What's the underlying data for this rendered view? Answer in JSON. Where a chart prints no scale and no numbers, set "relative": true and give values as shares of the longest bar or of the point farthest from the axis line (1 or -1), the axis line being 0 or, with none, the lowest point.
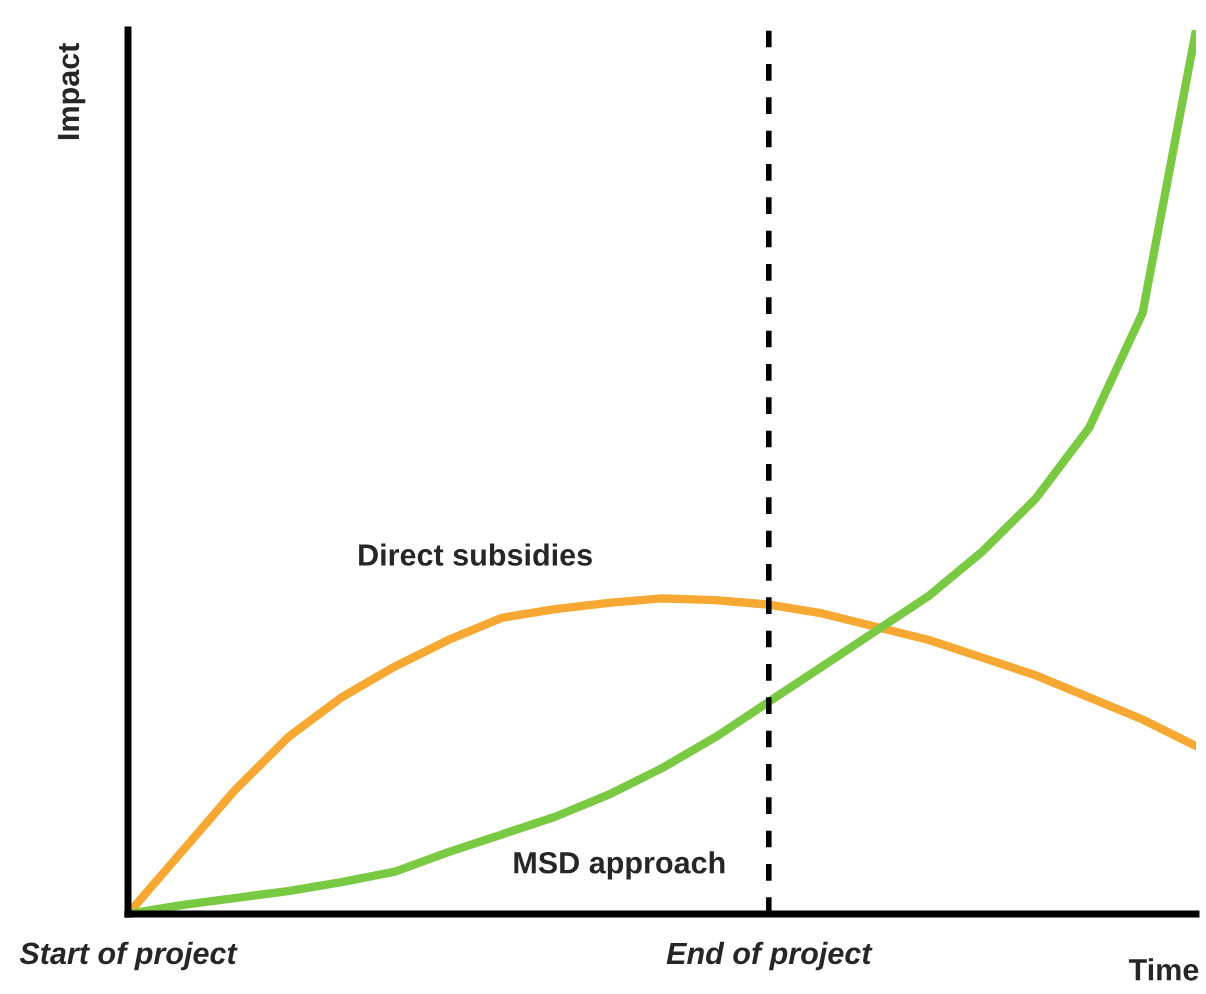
{
  "chart_data": {
    "type": "line",
    "relative": true,
    "xlabel": "Time",
    "ylabel": "Impact",
    "categories": [
      "Start of project",
      null,
      null,
      null,
      null,
      null,
      null,
      null,
      null,
      null,
      null,
      null,
      "End of project",
      null,
      null,
      null,
      null,
      null,
      null,
      null,
      null
    ],
    "ref_lines": [
      {
        "axis": "x",
        "value": "End of project",
        "color": "#000000",
        "line_style": "dashed"
      }
    ],
    "series": [
      {
        "name": "Direct subsidies",
        "color": "#f7a833",
        "values": [
          0,
          0.07,
          0.14,
          0.2,
          0.245,
          0.28,
          0.31,
          0.335,
          0.345,
          0.352,
          0.357,
          0.355,
          0.35,
          0.34,
          0.325,
          0.31,
          0.29,
          0.27,
          0.245,
          0.22,
          0.19
        ]
      },
      {
        "name": "MSD approach",
        "color": "#7ac943",
        "values": [
          0,
          0.01,
          0.018,
          0.026,
          0.036,
          0.048,
          0.07,
          0.09,
          0.11,
          0.135,
          0.165,
          0.2,
          0.24,
          0.28,
          0.32,
          0.36,
          0.41,
          0.47,
          0.55,
          0.68,
          1.0
        ]
      }
    ]
  }
}
